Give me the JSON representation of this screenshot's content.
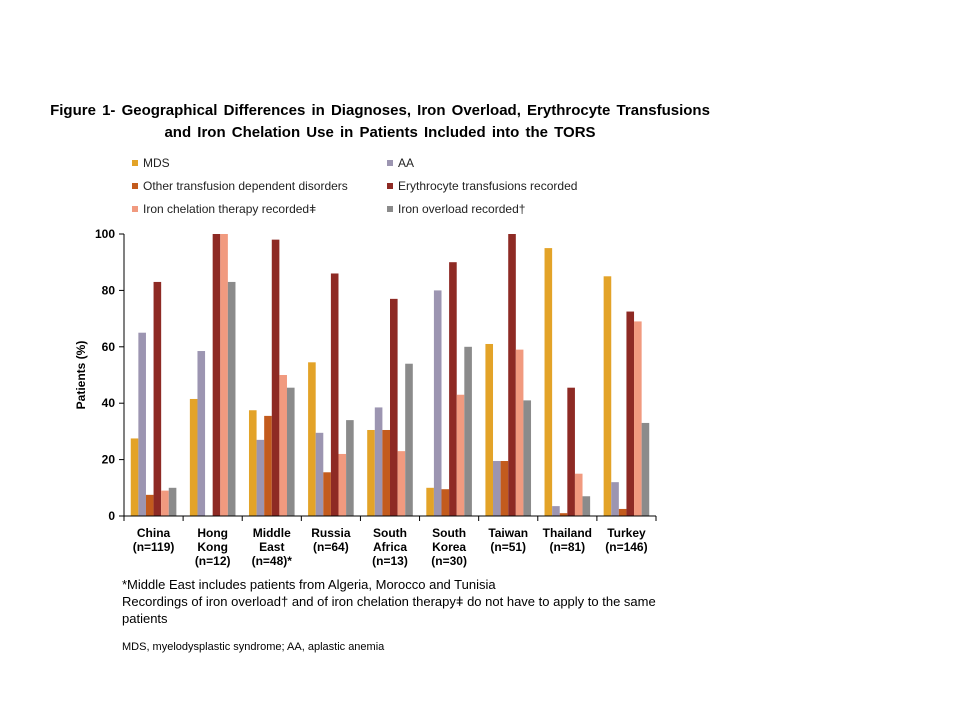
{
  "figure_title": "Figure 1- Geographical Differences in Diagnoses, Iron Overload, Erythrocyte Transfusions and Iron Chelation Use in Patients Included into the TORS",
  "chart_data": {
    "type": "bar",
    "title": "Figure 1- Geographical Differences in Diagnoses, Iron Overload, Erythrocyte Transfusions and Iron Chelation Use in Patients Included into the TORS",
    "xlabel": "",
    "ylabel": "Patients (%)",
    "ylim": [
      0,
      100
    ],
    "yticks": [
      "0",
      "20",
      "40",
      "60",
      "80",
      "100"
    ],
    "grid": false,
    "legend_position": "top",
    "categories": [
      [
        "China",
        "(n=119)"
      ],
      [
        "Hong",
        "Kong",
        "(n=12)"
      ],
      [
        "Middle",
        "East",
        "(n=48)*"
      ],
      [
        "Russia",
        "(n=64)"
      ],
      [
        "South",
        "Africa",
        "(n=13)"
      ],
      [
        "South",
        "Korea",
        "(n=30)"
      ],
      [
        "Taiwan",
        "(n=51)"
      ],
      [
        "Thailand",
        "(n=81)"
      ],
      [
        "Turkey",
        "(n=146)"
      ]
    ],
    "series": [
      {
        "name": "MDS",
        "color": "#E3A328",
        "values": [
          27.5,
          41.5,
          37.5,
          54.5,
          30.5,
          10,
          61,
          95,
          85
        ]
      },
      {
        "name": "AA",
        "color": "#9C95B1",
        "values": [
          65,
          58.5,
          27,
          29.5,
          38.5,
          80,
          19.5,
          3.5,
          12
        ]
      },
      {
        "name": "Other transfusion dependent disorders",
        "color": "#C35B1D",
        "values": [
          7.5,
          0,
          35.5,
          15.5,
          30.5,
          9.5,
          19.5,
          1,
          2.5
        ]
      },
      {
        "name": "Erythrocyte transfusions recorded",
        "color": "#8E2A24",
        "values": [
          83,
          100,
          98,
          86,
          77,
          90,
          100,
          45.5,
          72.5
        ]
      },
      {
        "name": "Iron chelation therapy recordedǂ",
        "color": "#F19A7F",
        "values": [
          9,
          100,
          50,
          22,
          23,
          43,
          59,
          15,
          69
        ]
      },
      {
        "name": "Iron overload  recorded†",
        "color": "#8B8B8B",
        "values": [
          10,
          83,
          45.5,
          34,
          54,
          60,
          41,
          7,
          33
        ]
      }
    ]
  },
  "footnotes": {
    "line1": "*Middle East includes patients from Algeria, Morocco and Tunisia",
    "line2": "Recordings of iron overload† and of iron chelation therapyǂ do not have to apply to the same patients",
    "abbreviations": "MDS, myelodysplastic syndrome; AA, aplastic anemia"
  }
}
